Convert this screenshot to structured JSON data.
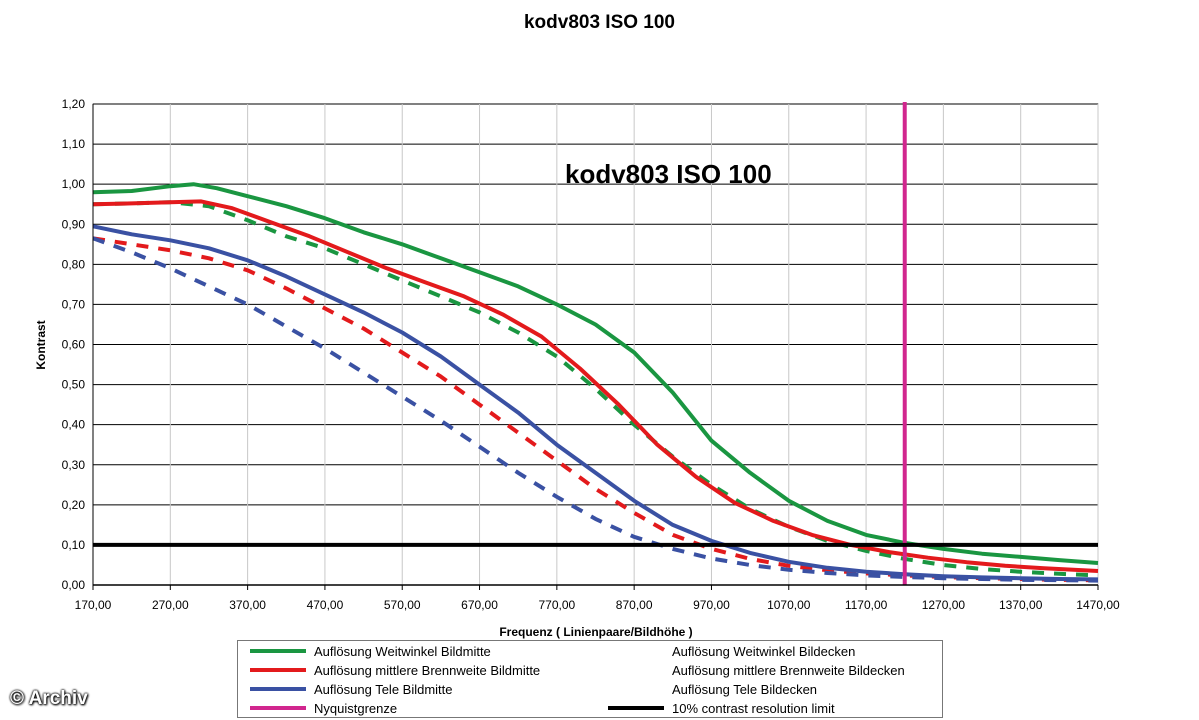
{
  "page_title": "kodv803 ISO 100",
  "copyright": "© Archiv",
  "chart_data": {
    "type": "line",
    "title": "kodv803 ISO 100",
    "inner_title": "kodv803 ISO 100",
    "xlabel": "Frequenz ( Linienpaare/Bildhöhe )",
    "ylabel": "Kontrast",
    "xlim": [
      170,
      1470
    ],
    "ylim": [
      0,
      1.2
    ],
    "x_ticks": [
      "170,00",
      "270,00",
      "370,00",
      "470,00",
      "570,00",
      "670,00",
      "770,00",
      "870,00",
      "970,00",
      "1070,00",
      "1170,00",
      "1270,00",
      "1370,00",
      "1470,00"
    ],
    "y_ticks": [
      "0,00",
      "0,10",
      "0,20",
      "0,30",
      "0,40",
      "0,50",
      "0,60",
      "0,70",
      "0,80",
      "0,90",
      "1,00",
      "1,10",
      "1,20"
    ],
    "grid": true,
    "legend_position": "bottom",
    "series": [
      {
        "name": "Auflösung Weitwinkel Bildmitte",
        "color": "#1a9641",
        "style": "solid",
        "x": [
          170,
          220,
          270,
          300,
          330,
          370,
          420,
          470,
          520,
          570,
          620,
          670,
          720,
          770,
          820,
          870,
          920,
          970,
          1020,
          1070,
          1120,
          1170,
          1220,
          1270,
          1320,
          1370,
          1420,
          1470
        ],
        "values": [
          0.98,
          0.983,
          0.995,
          1.0,
          0.99,
          0.97,
          0.945,
          0.915,
          0.88,
          0.85,
          0.815,
          0.78,
          0.745,
          0.7,
          0.65,
          0.58,
          0.48,
          0.36,
          0.28,
          0.21,
          0.16,
          0.125,
          0.105,
          0.09,
          0.078,
          0.07,
          0.062,
          0.055
        ]
      },
      {
        "name": "Auflösung Weitwinkel Bildecken",
        "color": "#1a9641",
        "style": "dashed",
        "x": [
          170,
          220,
          270,
          320,
          370,
          420,
          470,
          520,
          570,
          620,
          670,
          720,
          770,
          820,
          870,
          920,
          970,
          1020,
          1070,
          1120,
          1170,
          1220,
          1270,
          1320,
          1370,
          1420,
          1470
        ],
        "values": [
          0.95,
          0.952,
          0.955,
          0.945,
          0.91,
          0.87,
          0.84,
          0.8,
          0.76,
          0.72,
          0.68,
          0.63,
          0.57,
          0.49,
          0.4,
          0.32,
          0.25,
          0.19,
          0.145,
          0.11,
          0.085,
          0.065,
          0.05,
          0.04,
          0.033,
          0.028,
          0.024
        ]
      },
      {
        "name": "Auflösung mittlere Brennweite Bildmitte",
        "color": "#e31a1c",
        "style": "solid",
        "x": [
          170,
          220,
          270,
          310,
          350,
          400,
          450,
          500,
          550,
          600,
          650,
          700,
          750,
          800,
          850,
          900,
          950,
          1000,
          1050,
          1100,
          1150,
          1200,
          1250,
          1300,
          1350,
          1400,
          1470
        ],
        "values": [
          0.95,
          0.952,
          0.955,
          0.957,
          0.94,
          0.905,
          0.87,
          0.83,
          0.79,
          0.755,
          0.72,
          0.675,
          0.62,
          0.54,
          0.45,
          0.35,
          0.27,
          0.205,
          0.16,
          0.125,
          0.1,
          0.082,
          0.068,
          0.057,
          0.048,
          0.042,
          0.035
        ]
      },
      {
        "name": "Auflösung mittlere Brennweite Bildecken",
        "color": "#e31a1c",
        "style": "dashed",
        "x": [
          170,
          220,
          270,
          320,
          370,
          420,
          470,
          520,
          570,
          620,
          670,
          720,
          770,
          820,
          870,
          920,
          970,
          1020,
          1070,
          1120,
          1170,
          1220,
          1270,
          1320,
          1370,
          1420,
          1470
        ],
        "values": [
          0.865,
          0.85,
          0.835,
          0.815,
          0.785,
          0.74,
          0.69,
          0.64,
          0.58,
          0.52,
          0.45,
          0.38,
          0.31,
          0.24,
          0.18,
          0.125,
          0.09,
          0.065,
          0.048,
          0.037,
          0.029,
          0.024,
          0.02,
          0.017,
          0.015,
          0.013,
          0.012
        ]
      },
      {
        "name": "Auflösung Tele Bildmitte",
        "color": "#3a51a3",
        "style": "solid",
        "x": [
          170,
          220,
          270,
          320,
          370,
          420,
          470,
          520,
          570,
          620,
          670,
          720,
          770,
          820,
          870,
          920,
          970,
          1020,
          1070,
          1120,
          1170,
          1220,
          1270,
          1320,
          1370,
          1420,
          1470
        ],
        "values": [
          0.895,
          0.875,
          0.86,
          0.84,
          0.81,
          0.77,
          0.725,
          0.68,
          0.63,
          0.57,
          0.5,
          0.43,
          0.35,
          0.28,
          0.21,
          0.15,
          0.11,
          0.08,
          0.058,
          0.043,
          0.033,
          0.027,
          0.022,
          0.019,
          0.017,
          0.015,
          0.014
        ]
      },
      {
        "name": "Auflösung Tele Bildecken",
        "color": "#3a51a3",
        "style": "dashed",
        "x": [
          170,
          220,
          270,
          320,
          370,
          420,
          470,
          520,
          570,
          620,
          670,
          720,
          770,
          820,
          870,
          920,
          970,
          1020,
          1070,
          1120,
          1170,
          1220,
          1270,
          1320,
          1370,
          1420,
          1470
        ],
        "values": [
          0.865,
          0.83,
          0.79,
          0.745,
          0.7,
          0.645,
          0.59,
          0.53,
          0.47,
          0.41,
          0.345,
          0.28,
          0.22,
          0.165,
          0.12,
          0.09,
          0.066,
          0.05,
          0.038,
          0.03,
          0.024,
          0.02,
          0.017,
          0.015,
          0.013,
          0.012,
          0.011
        ]
      }
    ],
    "reference_lines": [
      {
        "name": "Nyquistgrenze",
        "orientation": "vertical",
        "x": 1220,
        "color": "#d1268e"
      },
      {
        "name": "10% contrast resolution limit",
        "orientation": "horizontal",
        "y": 0.1,
        "color": "#000000"
      }
    ]
  },
  "legend": {
    "items": [
      {
        "label": "Auflösung Weitwinkel Bildmitte",
        "color": "#1a9641",
        "style": "solid"
      },
      {
        "label": "Auflösung Weitwinkel Bildecken",
        "color": "#1a9641",
        "style": "dashed"
      },
      {
        "label": "Auflösung mittlere Brennweite Bildmitte",
        "color": "#e31a1c",
        "style": "solid"
      },
      {
        "label": "Auflösung mittlere Brennweite Bildecken",
        "color": "#e31a1c",
        "style": "dashed"
      },
      {
        "label": "Auflösung Tele Bildmitte",
        "color": "#3a51a3",
        "style": "solid"
      },
      {
        "label": "Auflösung Tele Bildecken",
        "color": "#3a51a3",
        "style": "dashed"
      },
      {
        "label": "Nyquistgrenze",
        "color": "#d1268e",
        "style": "solid"
      },
      {
        "label": "10% contrast resolution limit",
        "color": "#000000",
        "style": "solid"
      }
    ]
  }
}
